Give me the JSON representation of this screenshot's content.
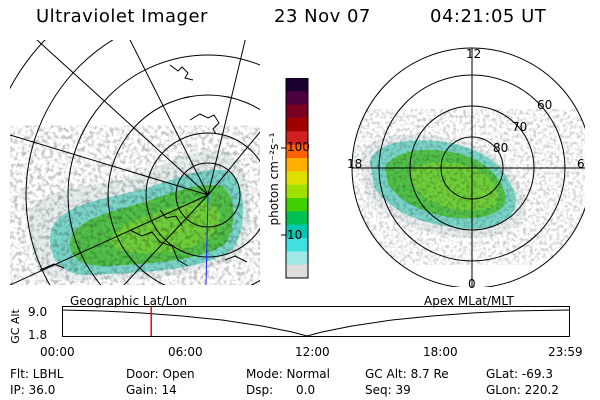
{
  "header": {
    "instrument": "Ultraviolet Imager",
    "date": "23 Nov 07",
    "time": "04:21:05 UT"
  },
  "colorbar": {
    "unit_label": "photon cm⁻²s⁻¹",
    "ticks": [
      "100",
      "10"
    ],
    "colors": [
      "#1a0030",
      "#4b0040",
      "#7a0020",
      "#a00000",
      "#d02020",
      "#ff6000",
      "#ffb000",
      "#e0e000",
      "#a0e000",
      "#40d000",
      "#00c050",
      "#00c8b0",
      "#40e0e0",
      "#a0e8e8",
      "#dddddd"
    ]
  },
  "left_map": {
    "label": "Geographic Lat/Lon",
    "emission_color": "#40c040"
  },
  "right_map": {
    "label": "Apex  MLat/MLT",
    "labels": {
      "mlt_top": "12",
      "mlt_left": "18",
      "mlt_right": "6",
      "mlt_bottom": "0",
      "lat_60": "60",
      "lat_70": "70",
      "lat_80": "80"
    }
  },
  "altitude_plot": {
    "y_label": "GC Alt",
    "y_ticks": [
      "9.0",
      "1.8"
    ],
    "x_ticks": [
      "00:00",
      "06:00",
      "12:00",
      "18:00",
      "23:59"
    ],
    "current_time_fraction": 0.176,
    "marker_color": "#ff0000"
  },
  "info": {
    "flt": "Flt: LBHL",
    "ip": "IP: 36.0",
    "door": "Door: Open",
    "gain": "Gain: 14",
    "mode": "Mode: Normal",
    "dsp": "Dsp:      0.0",
    "gcalt": "GC Alt: 8.7 Re",
    "seq": "Seq: 39",
    "glat": "GLat: -69.3",
    "glon": "GLon: 220.2"
  }
}
